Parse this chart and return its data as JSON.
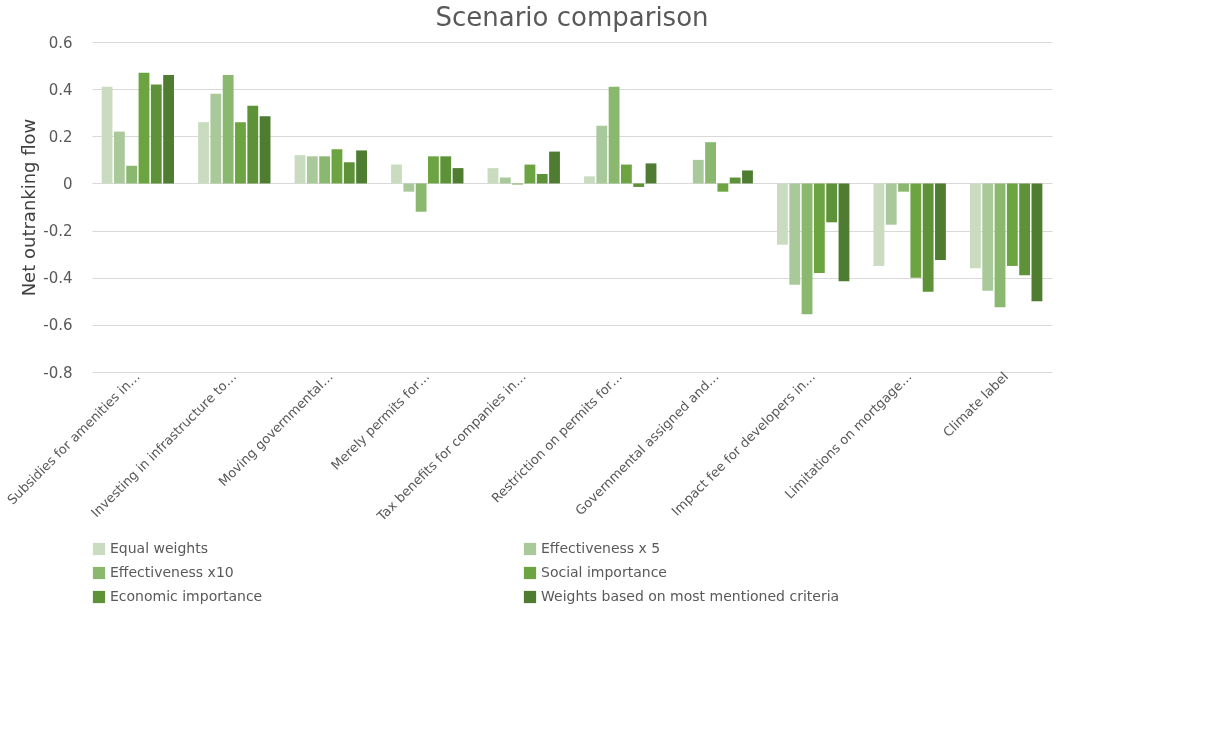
{
  "chart_data": {
    "type": "bar",
    "title": "Scenario comparison",
    "ylabel": "Net outranking flow",
    "categories": [
      "Subsidies for amenities in…",
      "Investing in infrastructure to…",
      "Moving governmental…",
      "Merely permits for…",
      "Tax benefits for companies in…",
      "Restriction on permits for…",
      "Governmental assigned and…",
      "Impact fee for developers in…",
      "Limitations on mortgage…",
      "Climate label"
    ],
    "series": [
      {
        "name": "Equal weights",
        "color": "#c9dcc0",
        "values": [
          0.41,
          0.26,
          0.12,
          0.08,
          0.065,
          0.03,
          null,
          -0.26,
          -0.35,
          -0.36
        ]
      },
      {
        "name": "Effectiveness x 5",
        "color": "#a9c99a",
        "values": [
          0.22,
          0.38,
          0.115,
          -0.035,
          0.025,
          0.245,
          0.1,
          -0.43,
          -0.175,
          -0.455
        ]
      },
      {
        "name": "Effectiveness x10",
        "color": "#8ab86f",
        "values": [
          0.075,
          0.46,
          0.115,
          -0.12,
          -0.005,
          0.41,
          0.175,
          -0.555,
          -0.035,
          -0.525
        ]
      },
      {
        "name": "Social importance",
        "color": "#6ca442",
        "values": [
          0.47,
          0.26,
          0.145,
          0.115,
          0.08,
          0.08,
          -0.035,
          -0.38,
          -0.4,
          -0.35
        ]
      },
      {
        "name": "Economic importance",
        "color": "#5e9238",
        "values": [
          0.42,
          0.33,
          0.09,
          0.115,
          0.04,
          -0.015,
          0.025,
          -0.165,
          -0.46,
          -0.39
        ]
      },
      {
        "name": "Weights based on most mentioned criteria",
        "color": "#4e7d32",
        "values": [
          0.46,
          0.285,
          0.14,
          0.065,
          0.135,
          0.085,
          0.055,
          -0.415,
          -0.325,
          -0.5
        ]
      }
    ],
    "ylim": [
      -0.8,
      0.6
    ],
    "yticks": [
      -0.8,
      -0.6,
      -0.4,
      -0.2,
      0,
      0.2,
      0.4,
      0.6
    ],
    "grid": "y",
    "legend": "bottom"
  }
}
